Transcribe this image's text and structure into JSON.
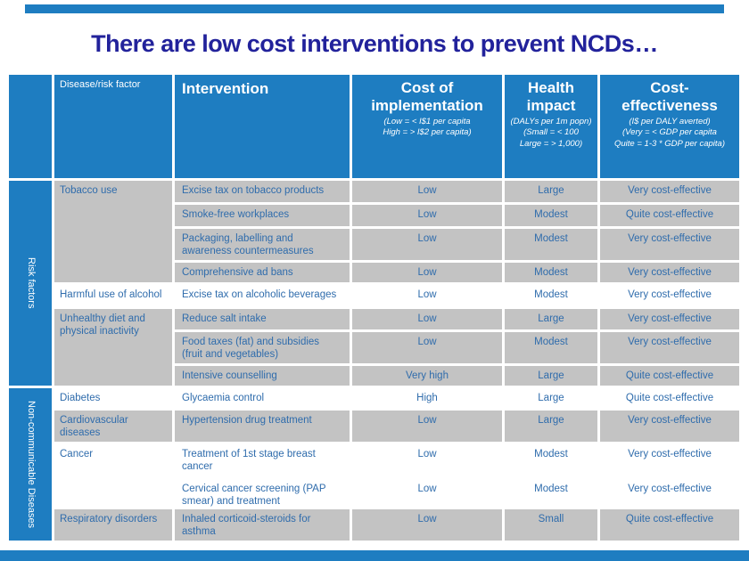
{
  "slide": {
    "title": "There are low cost interventions to prevent NCDs…",
    "accent_color": "#1E7DC1",
    "shaded_cell_color": "#C3C3C3",
    "body_text_color": "#2F6CAC",
    "title_color": "#22229B"
  },
  "table": {
    "header": {
      "disease_col": "Disease/risk factor",
      "intervention_col": "Intervention",
      "cost_col": {
        "title": "Cost of implementation",
        "notes": [
          "(Low = < I$1 per capita",
          "High = > I$2 per capita)"
        ]
      },
      "impact_col": {
        "title": "Health impact",
        "notes": [
          "(DALYs per 1m popn)",
          "(Small = < 100",
          "Large = > 1,000)"
        ]
      },
      "ce_col": {
        "title": "Cost-effectiveness",
        "notes": [
          "(I$ per DALY averted)",
          "(Very = < GDP per capita",
          "Quite = 1-3 * GDP per capita)"
        ]
      }
    },
    "sections": [
      {
        "label": "Risk factors",
        "groups": [
          {
            "disease": "Tobacco use",
            "shaded": true,
            "rows": [
              {
                "intervention": "Excise tax on tobacco products",
                "cost": "Low",
                "impact": "Large",
                "ce": "Very cost-effective"
              },
              {
                "intervention": "Smoke-free workplaces",
                "cost": "Low",
                "impact": "Modest",
                "ce": "Quite cost-effective"
              },
              {
                "intervention": "Packaging, labelling and awareness countermeasures",
                "cost": "Low",
                "impact": "Modest",
                "ce": "Very cost-effective"
              },
              {
                "intervention": "Comprehensive ad bans",
                "cost": "Low",
                "impact": "Modest",
                "ce": "Very cost-effective"
              }
            ]
          },
          {
            "disease": "Harmful use of alcohol",
            "shaded": false,
            "rows": [
              {
                "intervention": "Excise tax on alcoholic beverages",
                "cost": "Low",
                "impact": "Modest",
                "ce": "Very cost-effective"
              }
            ]
          },
          {
            "disease": "Unhealthy diet and physical inactivity",
            "shaded": true,
            "rows": [
              {
                "intervention": "Reduce salt intake",
                "cost": "Low",
                "impact": "Large",
                "ce": "Very cost-effective"
              },
              {
                "intervention": "Food taxes (fat) and subsidies (fruit and vegetables)",
                "cost": "Low",
                "impact": "Modest",
                "ce": "Very cost-effective"
              },
              {
                "intervention": "Intensive counselling",
                "cost": "Very high",
                "impact": "Large",
                "ce": "Quite cost-effective"
              }
            ]
          }
        ]
      },
      {
        "label": "Non-communicable Diseases",
        "groups": [
          {
            "disease": "Diabetes",
            "shaded": false,
            "rows": [
              {
                "intervention": "Glycaemia control",
                "cost": "High",
                "impact": "Large",
                "ce": "Quite cost-effective"
              }
            ]
          },
          {
            "disease": "Cardiovascular diseases",
            "shaded": true,
            "rows": [
              {
                "intervention": "Hypertension drug treatment",
                "cost": "Low",
                "impact": "Large",
                "ce": "Very cost-effective"
              }
            ]
          },
          {
            "disease": "Cancer",
            "shaded": false,
            "rows": [
              {
                "intervention": "Treatment of 1st stage breast cancer",
                "cost": "Low",
                "impact": "Modest",
                "ce": "Very cost-effective"
              },
              {
                "intervention": "Cervical cancer screening (PAP smear) and treatment",
                "cost": "Low",
                "impact": "Modest",
                "ce": "Very cost-effective"
              }
            ]
          },
          {
            "disease": "Respiratory disorders",
            "shaded": true,
            "rows": [
              {
                "intervention": "Inhaled corticoid-steroids for asthma",
                "cost": "Low",
                "impact": "Small",
                "ce": "Quite cost-effective"
              }
            ]
          }
        ]
      }
    ]
  }
}
